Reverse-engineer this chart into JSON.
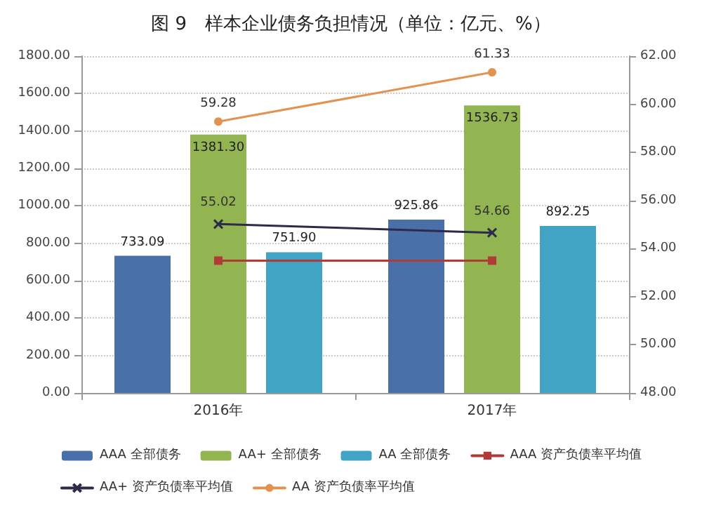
{
  "chart_data": {
    "type": "bar",
    "title": "图 9　样本企业债务负担情况（单位：亿元、%）",
    "categories": [
      "2016年",
      "2017年"
    ],
    "series": [
      {
        "name": "AAA 全部债务",
        "color": "#4a70aa",
        "values": [
          733.09,
          925.86
        ],
        "value_labels": [
          "733.09",
          "925.86"
        ]
      },
      {
        "name": "AA+ 全部债务",
        "color": "#92b552",
        "values": [
          1381.3,
          1536.73
        ],
        "value_labels": [
          "1381.30",
          "1536.73"
        ]
      },
      {
        "name": "AA 全部债务",
        "color": "#42a4c4",
        "values": [
          751.9,
          892.25
        ],
        "value_labels": [
          "751.90",
          "892.25"
        ]
      },
      {
        "name": "AAA 资产负债率平均值",
        "type": "line",
        "axis": "y2",
        "color": "#b23a36",
        "marker": "square",
        "values": [
          53.5,
          53.5
        ]
      },
      {
        "name": "AA+ 资产负债率平均值",
        "type": "line",
        "axis": "y2",
        "color": "#2e2a4a",
        "marker": "cross",
        "values": [
          55.02,
          54.66
        ],
        "value_labels": [
          "55.02",
          "54.66"
        ]
      },
      {
        "name": "AA 资产负债率平均值",
        "type": "line",
        "axis": "y2",
        "color": "#e39350",
        "marker": "circle",
        "values": [
          59.28,
          61.33
        ],
        "value_labels": [
          "59.28",
          "61.33"
        ]
      }
    ],
    "ylim": [
      0,
      1800
    ],
    "yticks": [
      {
        "value": 0,
        "label": "0.00"
      },
      {
        "value": 200,
        "label": "200.00"
      },
      {
        "value": 400,
        "label": "400.00"
      },
      {
        "value": 600,
        "label": "600.00"
      },
      {
        "value": 800,
        "label": "800.00"
      },
      {
        "value": 1000,
        "label": "1000.00"
      },
      {
        "value": 1200,
        "label": "1200.00"
      },
      {
        "value": 1400,
        "label": "1400.00"
      },
      {
        "value": 1600,
        "label": "1600.00"
      },
      {
        "value": 1800,
        "label": "1800.00"
      }
    ],
    "y2lim": [
      48,
      62
    ],
    "y2ticks": [
      {
        "value": 48,
        "label": "48.00"
      },
      {
        "value": 50,
        "label": "50.00"
      },
      {
        "value": 52,
        "label": "52.00"
      },
      {
        "value": 54,
        "label": "54.00"
      },
      {
        "value": 56,
        "label": "56.00"
      },
      {
        "value": 58,
        "label": "58.00"
      },
      {
        "value": 60,
        "label": "60.00"
      },
      {
        "value": 62,
        "label": "62.00"
      }
    ],
    "grid": "y",
    "legend": "bottom"
  }
}
